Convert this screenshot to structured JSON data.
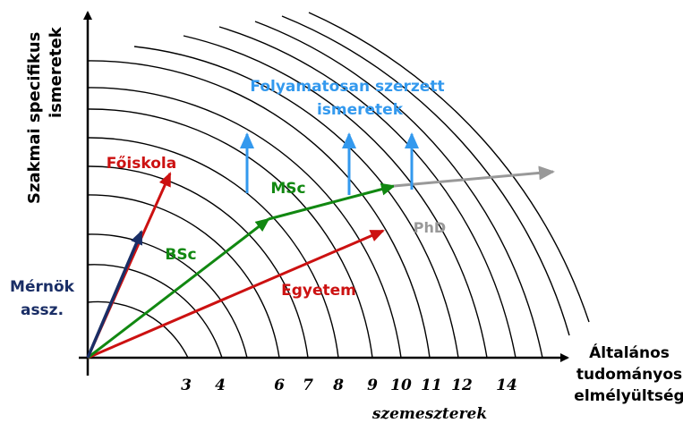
{
  "axes": {
    "y_label_line1": "Szakmai specifikus",
    "y_label_line2": "ismeretek",
    "x_label_line1": "Általános",
    "x_label_line2": "tudományos",
    "x_label_line3": "elmélyültség",
    "x_unit": "szemeszterek"
  },
  "ticks": [
    "3",
    "4",
    "6",
    "7",
    "8",
    "9",
    "10",
    "11",
    "12",
    "14"
  ],
  "labels": {
    "continuous_line1": "Folyamatosan szerzett",
    "continuous_line2": "ismeretek",
    "foiskola": "Főiskola",
    "msc": "MSc",
    "bsc": "BSc",
    "phd": "PhD",
    "egyetem": "Egyetem",
    "mernok_line1": "Mérnök",
    "mernok_line2": "assz."
  },
  "colors": {
    "red": "#cc1111",
    "green": "#118811",
    "navy": "#1a2e66",
    "blue": "#3399ee",
    "gray": "#999999",
    "black": "#000000"
  }
}
